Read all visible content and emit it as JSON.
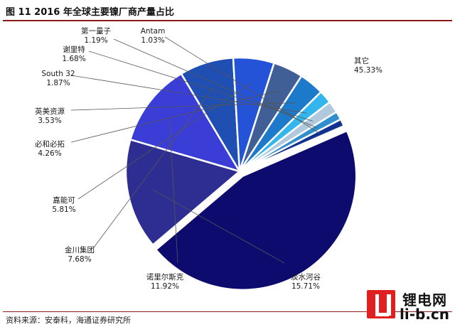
{
  "figure": {
    "title": "图 11  2016 年全球主要镍厂商产量占比",
    "source": "资料来源：安泰科，海通证券研究所"
  },
  "watermark": {
    "text_top": "锂电网",
    "text_bottom": "li-b.cn"
  },
  "chart_data": {
    "type": "pie",
    "title": "",
    "unit": "%",
    "slices": [
      {
        "name": "其它",
        "value": 45.33,
        "pct_label": "45.33%",
        "color": "#0d0b6e"
      },
      {
        "name": "淡水河谷",
        "value": 15.71,
        "pct_label": "15.71%",
        "color": "#2e2e92"
      },
      {
        "name": "诺里尔斯克",
        "value": 11.92,
        "pct_label": "11.92%",
        "color": "#3a3ed6"
      },
      {
        "name": "金川集团",
        "value": 7.68,
        "pct_label": "7.68%",
        "color": "#1f4fb3"
      },
      {
        "name": "嘉能可",
        "value": 5.81,
        "pct_label": "5.81%",
        "color": "#2453d8"
      },
      {
        "name": "必和必拓",
        "value": 4.26,
        "pct_label": "4.26%",
        "color": "#3f5f96"
      },
      {
        "name": "英美资源",
        "value": 3.53,
        "pct_label": "3.53%",
        "color": "#1d79c9"
      },
      {
        "name": "South 32",
        "value": 1.87,
        "pct_label": "1.87%",
        "color": "#33b6ee"
      },
      {
        "name": "谢里特",
        "value": 1.68,
        "pct_label": "1.68%",
        "color": "#b0c9dd"
      },
      {
        "name": "第一量子",
        "value": 1.19,
        "pct_label": "1.19%",
        "color": "#2f8fcf"
      },
      {
        "name": "Antam",
        "value": 1.03,
        "pct_label": "1.03%",
        "color": "#10318f"
      }
    ]
  }
}
